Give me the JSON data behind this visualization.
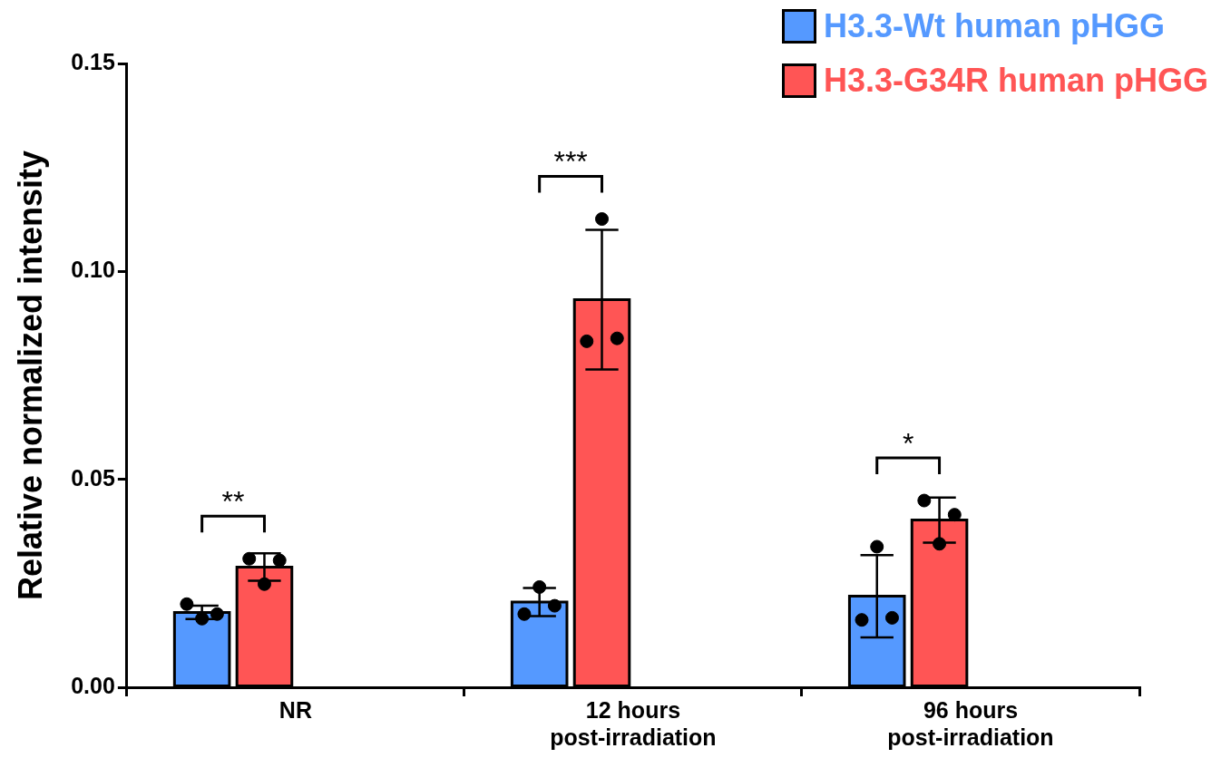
{
  "chart_data": {
    "type": "bar",
    "ylabel": "Relative normalized intensity",
    "categories": [
      "NR",
      "12 hours\npost-irradiation",
      "96 hours\npost-irradiation"
    ],
    "series": [
      {
        "name": "H3.3-Wt human pHGG",
        "color": "#5599ff",
        "values": [
          0.018,
          0.0205,
          0.0219
        ],
        "errors": [
          0.0016,
          0.0034,
          0.0099
        ]
      },
      {
        "name": "H3.3-G34R human pHGG",
        "color": "#ff5555",
        "values": [
          0.0289,
          0.0932,
          0.0402
        ],
        "errors": [
          0.0033,
          0.0168,
          0.0054
        ]
      },
      {
        "type": "scatter",
        "color": "#000000",
        "x": [
          "NR",
          "NR",
          "NR",
          "12 hours\npost-irradiation",
          "12 hours\npost-irradiation",
          "12 hours\npost-irradiation",
          "96 hours\npost-irradiation",
          "96 hours\npost-irradiation",
          "96 hours\npost-irradiation"
        ],
        "values": [
          0.02,
          0.0165,
          0.0176,
          0.0176,
          0.0241,
          0.0196,
          0.0162,
          0.0338,
          0.0167
        ]
      },
      {
        "type": "scatter",
        "color": "#000000",
        "x": [
          "NR",
          "NR",
          "NR",
          "12 hours\npost-irradiation",
          "12 hours\npost-irradiation",
          "12 hours\npost-irradiation",
          "96 hours\npost-irradiation",
          "96 hours\npost-irradiation",
          "96 hours\npost-irradiation"
        ],
        "values": [
          0.0309,
          0.0248,
          0.0305,
          0.0832,
          0.1126,
          0.0839,
          0.0449,
          0.0345,
          0.0415
        ]
      }
    ],
    "ylim": [
      0,
      0.15
    ],
    "yticks": [
      {
        "value": 0,
        "label": "0.00"
      },
      {
        "value": 0.05,
        "label": "0.05"
      },
      {
        "value": 0.1,
        "label": "0.10"
      },
      {
        "value": 0.15,
        "label": "0.15"
      }
    ],
    "annotations": [
      "**",
      "***",
      "*"
    ],
    "grid": false,
    "legend": "top right",
    "marker": "circle"
  }
}
